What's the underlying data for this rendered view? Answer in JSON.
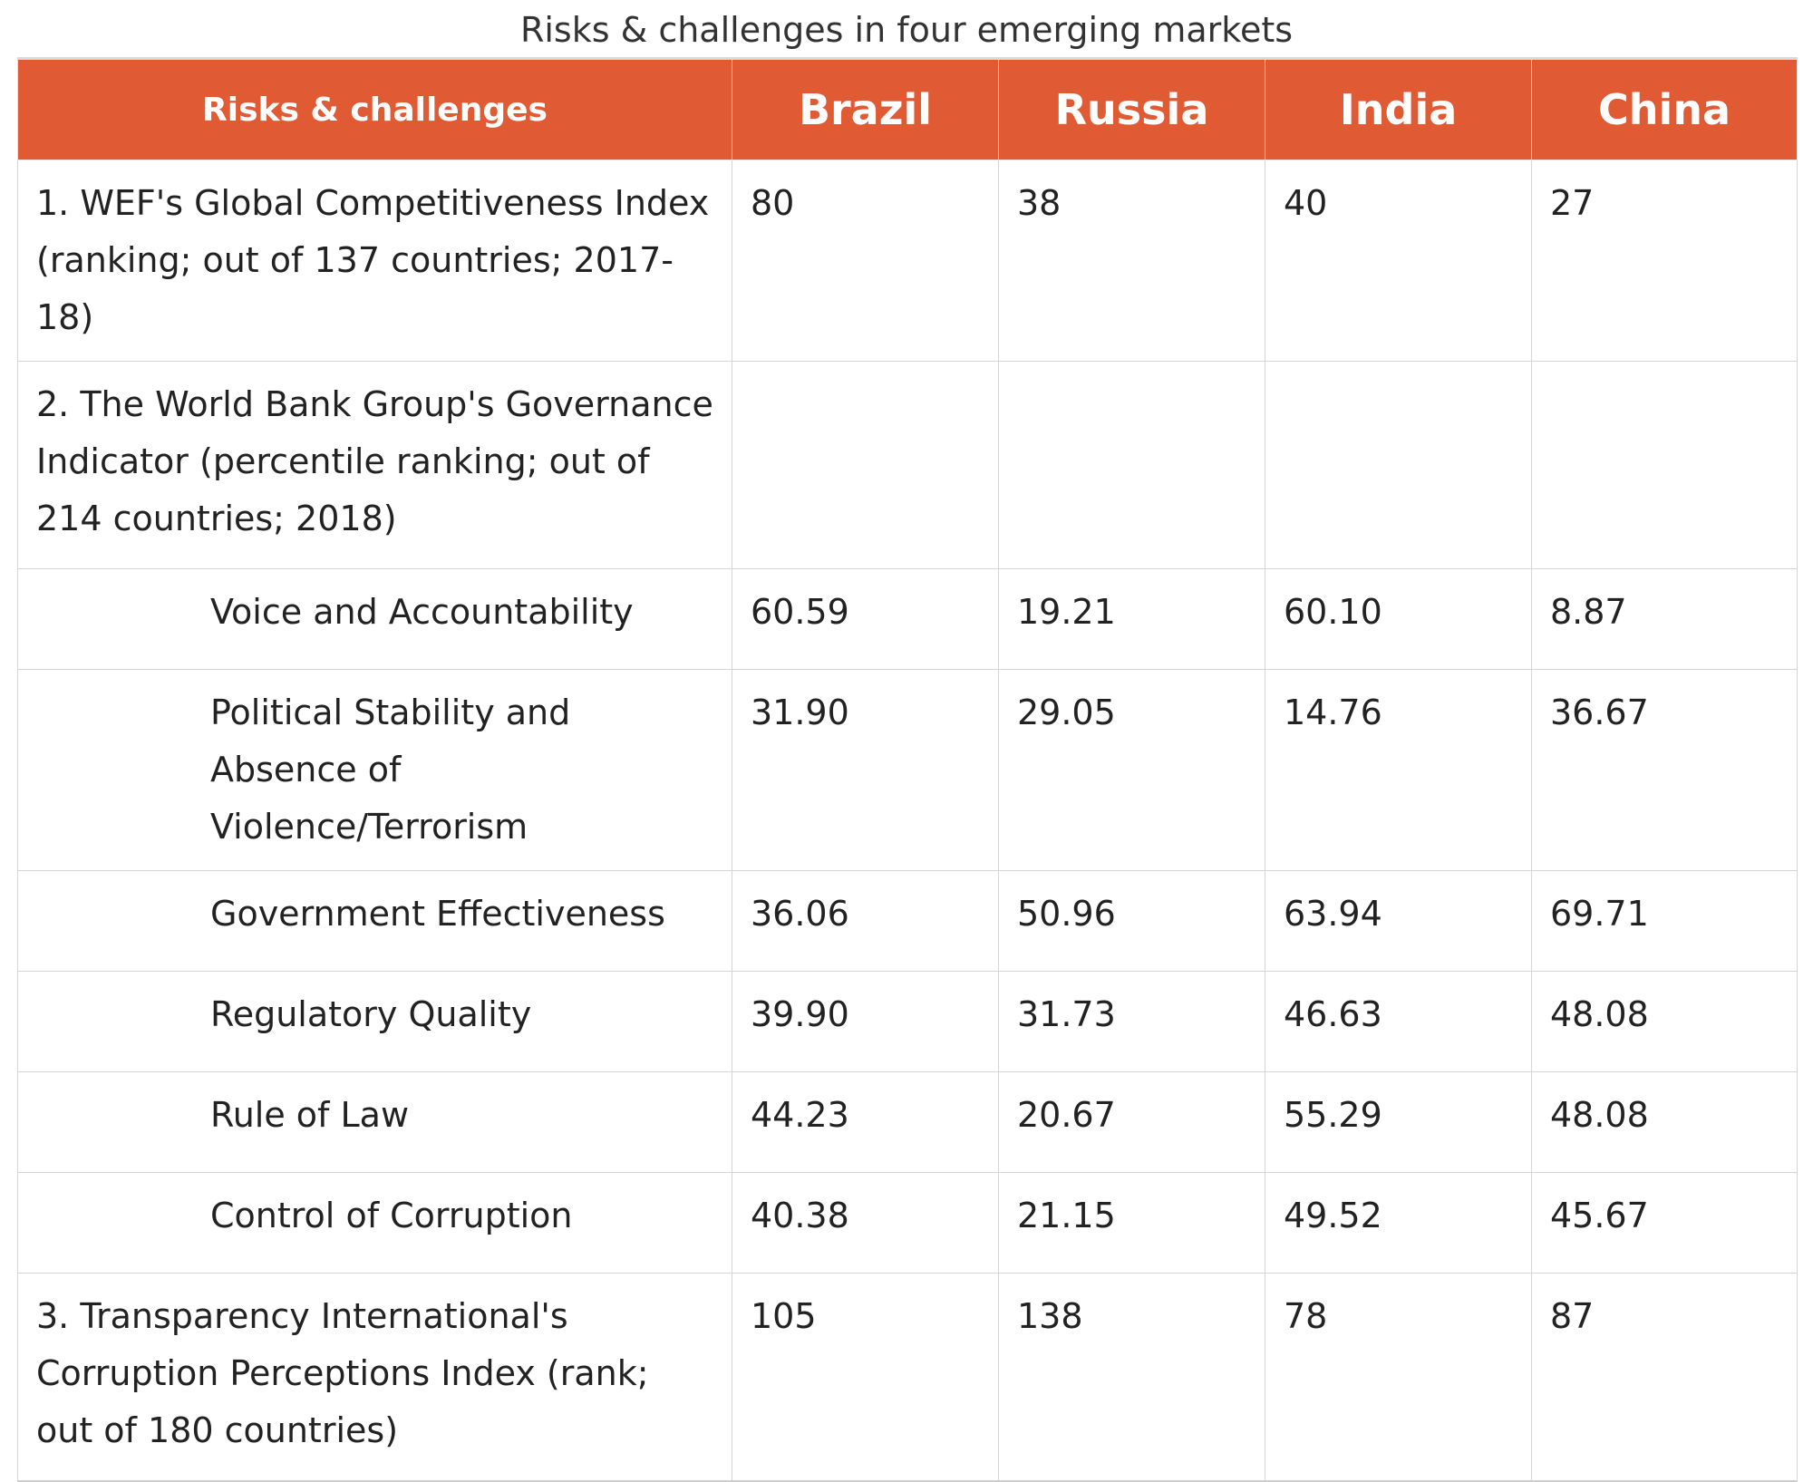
{
  "caption": "Risks & challenges in four emerging markets",
  "table": {
    "header": {
      "first": "Risks & challenges",
      "countries": [
        "Brazil",
        "Russia",
        "India",
        "China"
      ]
    },
    "rows": [
      {
        "label": "1. WEF's Global Competitiveness Index (ranking; out of 137 countries; 2017-18)",
        "values": [
          "80",
          "38",
          "40",
          "27"
        ]
      },
      {
        "label": "2. The World Bank Group's Governance Indicator (percentile ranking; out of 214 countries; 2018)",
        "values": [
          "",
          "",
          "",
          ""
        ]
      },
      {
        "label": "Voice and Accountability",
        "values": [
          "60.59",
          "19.21",
          "60.10",
          "8.87"
        ]
      },
      {
        "label": "Political Stability and Absence of Violence/Terrorism",
        "values": [
          "31.90",
          "29.05",
          "14.76",
          "36.67"
        ]
      },
      {
        "label": "Government Effectiveness",
        "values": [
          "36.06",
          "50.96",
          "63.94",
          "69.71"
        ]
      },
      {
        "label": "Regulatory Quality",
        "values": [
          "39.90",
          "31.73",
          "46.63",
          "48.08"
        ]
      },
      {
        "label": "Rule of Law",
        "values": [
          "44.23",
          "20.67",
          "55.29",
          "48.08"
        ]
      },
      {
        "label": "Control of Corruption",
        "values": [
          "40.38",
          "21.15",
          "49.52",
          "45.67"
        ]
      },
      {
        "label": "3. Transparency International's Corruption Perceptions Index (rank; out of 180 countries)",
        "values": [
          "105",
          "138",
          "78",
          "87"
        ]
      }
    ]
  },
  "colors": {
    "header_background": "#e05a34",
    "header_text": "#ffffff"
  }
}
